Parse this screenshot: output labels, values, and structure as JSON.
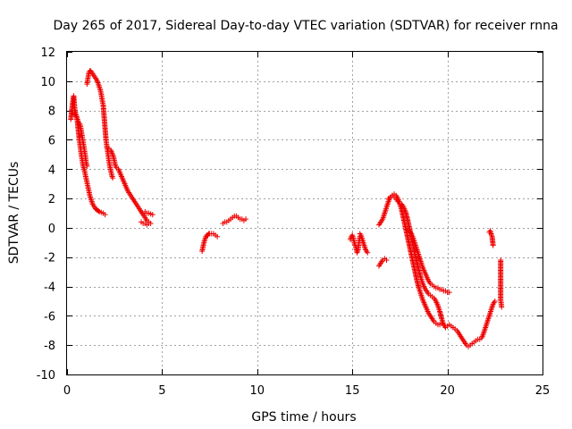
{
  "chart_data": {
    "type": "scatter",
    "title": "Day 265 of 2017, Sidereal Day-to-day VTEC variation (SDTVAR) for receiver rnna",
    "xlabel": "GPS time / hours",
    "ylabel": "SDTVAR / TECUs",
    "xlim": [
      0,
      25
    ],
    "ylim": [
      -10,
      12
    ],
    "xticks": [
      0,
      5,
      10,
      15,
      20,
      25
    ],
    "yticks": [
      -10,
      -8,
      -6,
      -4,
      -2,
      0,
      2,
      4,
      6,
      8,
      10,
      12
    ],
    "grid": true,
    "marker": "+",
    "colors": {
      "points": "#ee0000"
    },
    "segments": [
      {
        "name": "arc-1",
        "points": [
          [
            0.2,
            7.4
          ],
          [
            0.25,
            8.0
          ],
          [
            0.3,
            8.6
          ],
          [
            0.35,
            9.0
          ],
          [
            0.4,
            8.2
          ],
          [
            0.45,
            7.8
          ],
          [
            0.5,
            7.6
          ],
          [
            0.55,
            7.2
          ],
          [
            0.6,
            6.6
          ],
          [
            0.65,
            6.0
          ],
          [
            0.7,
            5.5
          ],
          [
            0.75,
            5.0
          ],
          [
            0.8,
            4.6
          ],
          [
            0.85,
            4.2
          ],
          [
            0.9,
            4.0
          ],
          [
            0.95,
            3.7
          ],
          [
            1.0,
            3.4
          ],
          [
            1.05,
            3.1
          ],
          [
            1.1,
            2.8
          ],
          [
            1.15,
            2.5
          ],
          [
            1.2,
            2.2
          ],
          [
            1.25,
            2.0
          ],
          [
            1.3,
            1.8
          ],
          [
            1.35,
            1.6
          ],
          [
            1.4,
            1.5
          ],
          [
            1.45,
            1.4
          ],
          [
            1.5,
            1.3
          ],
          [
            1.55,
            1.25
          ],
          [
            1.6,
            1.2
          ],
          [
            1.65,
            1.15
          ],
          [
            1.7,
            1.1
          ],
          [
            1.8,
            1.05
          ],
          [
            1.9,
            1.0
          ],
          [
            2.0,
            0.9
          ]
        ]
      },
      {
        "name": "arc-2",
        "points": [
          [
            0.3,
            7.8
          ],
          [
            0.4,
            7.8
          ],
          [
            0.5,
            7.6
          ],
          [
            0.6,
            7.2
          ],
          [
            0.7,
            7.0
          ],
          [
            0.75,
            6.6
          ],
          [
            0.8,
            6.2
          ],
          [
            0.85,
            5.8
          ],
          [
            0.9,
            5.4
          ],
          [
            0.95,
            5.0
          ],
          [
            1.0,
            4.5
          ],
          [
            1.05,
            4.2
          ]
        ]
      },
      {
        "name": "arc-3",
        "points": [
          [
            1.05,
            9.8
          ],
          [
            1.1,
            10.2
          ],
          [
            1.15,
            10.6
          ],
          [
            1.2,
            10.7
          ],
          [
            1.25,
            10.7
          ],
          [
            1.3,
            10.6
          ],
          [
            1.35,
            10.5
          ],
          [
            1.4,
            10.4
          ],
          [
            1.45,
            10.3
          ],
          [
            1.5,
            10.2
          ],
          [
            1.55,
            10.1
          ],
          [
            1.6,
            10.0
          ],
          [
            1.65,
            9.8
          ],
          [
            1.7,
            9.6
          ],
          [
            1.75,
            9.4
          ],
          [
            1.8,
            9.1
          ],
          [
            1.85,
            8.7
          ],
          [
            1.9,
            8.4
          ],
          [
            1.95,
            7.6
          ],
          [
            2.0,
            6.8
          ],
          [
            2.05,
            6.0
          ],
          [
            2.1,
            5.5
          ],
          [
            2.15,
            5.1
          ],
          [
            2.2,
            4.6
          ],
          [
            2.25,
            4.2
          ],
          [
            2.3,
            3.9
          ],
          [
            2.35,
            3.6
          ],
          [
            2.4,
            3.4
          ]
        ]
      },
      {
        "name": "arc-4",
        "points": [
          [
            2.1,
            5.5
          ],
          [
            2.2,
            5.4
          ],
          [
            2.3,
            5.3
          ],
          [
            2.4,
            5.0
          ],
          [
            2.45,
            4.8
          ],
          [
            2.5,
            4.5
          ],
          [
            2.55,
            4.2
          ],
          [
            2.6,
            4.1
          ],
          [
            2.7,
            4.0
          ],
          [
            2.8,
            3.7
          ],
          [
            2.9,
            3.4
          ],
          [
            3.0,
            3.1
          ],
          [
            3.1,
            2.8
          ],
          [
            3.2,
            2.5
          ],
          [
            3.3,
            2.3
          ],
          [
            3.4,
            2.1
          ],
          [
            3.5,
            1.9
          ],
          [
            3.6,
            1.7
          ],
          [
            3.7,
            1.5
          ],
          [
            3.8,
            1.3
          ],
          [
            3.9,
            1.1
          ],
          [
            4.0,
            0.9
          ],
          [
            4.1,
            0.7
          ],
          [
            4.2,
            0.5
          ],
          [
            4.3,
            0.4
          ],
          [
            4.4,
            0.3
          ]
        ]
      },
      {
        "name": "arc-5",
        "points": [
          [
            3.9,
            0.4
          ],
          [
            4.0,
            0.3
          ],
          [
            4.1,
            0.3
          ],
          [
            4.2,
            0.2
          ],
          [
            4.3,
            0.3
          ]
        ]
      },
      {
        "name": "arc-6",
        "points": [
          [
            4.1,
            1.1
          ],
          [
            4.2,
            1.0
          ],
          [
            4.3,
            1.0
          ],
          [
            4.4,
            0.95
          ],
          [
            4.5,
            0.9
          ]
        ]
      },
      {
        "name": "arc-7",
        "points": [
          [
            7.1,
            -1.6
          ],
          [
            7.15,
            -1.3
          ],
          [
            7.2,
            -1.0
          ],
          [
            7.25,
            -0.8
          ],
          [
            7.3,
            -0.6
          ],
          [
            7.35,
            -0.5
          ],
          [
            7.4,
            -0.5
          ],
          [
            7.45,
            -0.4
          ],
          [
            7.5,
            -0.4
          ],
          [
            7.6,
            -0.4
          ],
          [
            7.7,
            -0.4
          ],
          [
            7.8,
            -0.5
          ],
          [
            7.9,
            -0.6
          ]
        ]
      },
      {
        "name": "arc-8",
        "points": [
          [
            8.2,
            0.3
          ],
          [
            8.3,
            0.4
          ],
          [
            8.4,
            0.4
          ],
          [
            8.5,
            0.5
          ],
          [
            8.6,
            0.6
          ],
          [
            8.7,
            0.7
          ],
          [
            8.8,
            0.8
          ],
          [
            8.9,
            0.8
          ],
          [
            9.0,
            0.7
          ],
          [
            9.1,
            0.6
          ],
          [
            9.2,
            0.6
          ],
          [
            9.3,
            0.5
          ],
          [
            9.4,
            0.6
          ]
        ]
      },
      {
        "name": "arc-9",
        "points": [
          [
            14.9,
            -0.8
          ],
          [
            14.95,
            -0.6
          ],
          [
            15.0,
            -0.5
          ],
          [
            15.05,
            -0.7
          ],
          [
            15.1,
            -1.0
          ],
          [
            15.15,
            -1.2
          ],
          [
            15.2,
            -1.4
          ],
          [
            15.25,
            -1.7
          ],
          [
            15.3,
            -1.5
          ],
          [
            15.35,
            -1.0
          ],
          [
            15.4,
            -0.6
          ]
        ]
      },
      {
        "name": "arc-10",
        "points": [
          [
            15.4,
            -0.4
          ],
          [
            15.45,
            -0.5
          ],
          [
            15.5,
            -0.7
          ],
          [
            15.55,
            -0.9
          ],
          [
            15.6,
            -1.1
          ],
          [
            15.65,
            -1.3
          ],
          [
            15.7,
            -1.5
          ],
          [
            15.75,
            -1.6
          ],
          [
            15.8,
            -1.7
          ]
        ]
      },
      {
        "name": "arc-11",
        "points": [
          [
            16.4,
            -2.6
          ],
          [
            16.5,
            -2.4
          ],
          [
            16.6,
            -2.2
          ],
          [
            16.7,
            -2.1
          ],
          [
            16.8,
            -2.2
          ]
        ]
      },
      {
        "name": "arc-12",
        "points": [
          [
            16.4,
            0.2
          ],
          [
            16.5,
            0.4
          ],
          [
            16.6,
            0.6
          ],
          [
            16.7,
            1.0
          ],
          [
            16.8,
            1.4
          ],
          [
            16.9,
            1.8
          ],
          [
            17.0,
            2.1
          ],
          [
            17.1,
            2.2
          ],
          [
            17.2,
            2.3
          ],
          [
            17.3,
            2.2
          ],
          [
            17.4,
            2.0
          ],
          [
            17.5,
            1.6
          ],
          [
            17.6,
            1.2
          ],
          [
            17.7,
            0.6
          ],
          [
            17.8,
            0.0
          ],
          [
            17.9,
            -0.6
          ],
          [
            18.0,
            -1.2
          ],
          [
            18.1,
            -1.8
          ],
          [
            18.2,
            -2.4
          ],
          [
            18.3,
            -3.0
          ],
          [
            18.4,
            -3.6
          ],
          [
            18.5,
            -4.1
          ],
          [
            18.6,
            -4.5
          ],
          [
            18.7,
            -4.9
          ],
          [
            18.8,
            -5.2
          ],
          [
            18.9,
            -5.5
          ],
          [
            19.0,
            -5.8
          ],
          [
            19.1,
            -6.0
          ],
          [
            19.2,
            -6.2
          ],
          [
            19.3,
            -6.4
          ],
          [
            19.4,
            -6.5
          ],
          [
            19.5,
            -6.6
          ],
          [
            19.6,
            -6.6
          ],
          [
            19.7,
            -6.5
          ]
        ]
      },
      {
        "name": "arc-13",
        "points": [
          [
            16.9,
            2.0
          ],
          [
            17.0,
            2.1
          ],
          [
            17.1,
            2.2
          ],
          [
            17.2,
            2.1
          ],
          [
            17.3,
            2.0
          ],
          [
            17.4,
            1.8
          ],
          [
            17.5,
            1.7
          ],
          [
            17.6,
            1.6
          ],
          [
            17.7,
            1.4
          ],
          [
            17.8,
            1.1
          ],
          [
            17.9,
            0.6
          ],
          [
            18.0,
            0.0
          ],
          [
            18.1,
            -0.6
          ],
          [
            18.2,
            -1.2
          ],
          [
            18.3,
            -1.8
          ],
          [
            18.4,
            -2.4
          ],
          [
            18.5,
            -2.9
          ],
          [
            18.6,
            -3.4
          ],
          [
            18.7,
            -3.8
          ],
          [
            18.8,
            -4.1
          ],
          [
            18.9,
            -4.3
          ],
          [
            19.0,
            -4.5
          ],
          [
            19.1,
            -4.6
          ],
          [
            19.2,
            -4.7
          ],
          [
            19.3,
            -4.8
          ],
          [
            19.4,
            -5.0
          ],
          [
            19.5,
            -5.3
          ],
          [
            19.6,
            -5.7
          ],
          [
            19.7,
            -6.2
          ],
          [
            19.8,
            -6.6
          ],
          [
            19.9,
            -6.8
          ],
          [
            20.0,
            -6.7
          ],
          [
            20.1,
            -6.6
          ],
          [
            20.2,
            -6.7
          ],
          [
            20.3,
            -6.8
          ],
          [
            20.4,
            -6.9
          ],
          [
            20.5,
            -7.0
          ],
          [
            20.6,
            -7.2
          ],
          [
            20.7,
            -7.4
          ],
          [
            20.8,
            -7.6
          ],
          [
            20.9,
            -7.8
          ],
          [
            21.0,
            -8.0
          ],
          [
            21.1,
            -8.1
          ],
          [
            21.2,
            -8.0
          ],
          [
            21.3,
            -7.9
          ],
          [
            21.4,
            -7.8
          ],
          [
            21.5,
            -7.7
          ],
          [
            21.6,
            -7.6
          ],
          [
            21.7,
            -7.6
          ],
          [
            21.8,
            -7.5
          ],
          [
            21.9,
            -7.2
          ],
          [
            22.0,
            -6.8
          ],
          [
            22.1,
            -6.4
          ],
          [
            22.2,
            -6.0
          ],
          [
            22.3,
            -5.6
          ],
          [
            22.4,
            -5.2
          ],
          [
            22.5,
            -5.0
          ]
        ]
      },
      {
        "name": "arc-14",
        "points": [
          [
            17.9,
            -0.1
          ],
          [
            18.0,
            -0.2
          ],
          [
            18.1,
            -0.4
          ],
          [
            18.2,
            -0.7
          ],
          [
            18.3,
            -1.1
          ],
          [
            18.4,
            -1.5
          ],
          [
            18.5,
            -1.9
          ],
          [
            18.6,
            -2.3
          ],
          [
            18.7,
            -2.7
          ],
          [
            18.8,
            -3.0
          ],
          [
            18.9,
            -3.3
          ],
          [
            19.0,
            -3.6
          ],
          [
            19.1,
            -3.8
          ],
          [
            19.2,
            -3.9
          ],
          [
            19.3,
            -4.0
          ],
          [
            19.4,
            -4.1
          ],
          [
            19.5,
            -4.1
          ],
          [
            19.6,
            -4.2
          ],
          [
            19.7,
            -4.2
          ],
          [
            19.8,
            -4.3
          ],
          [
            19.9,
            -4.3
          ],
          [
            20.0,
            -4.4
          ],
          [
            20.1,
            -4.4
          ]
        ]
      },
      {
        "name": "arc-15",
        "points": [
          [
            22.2,
            -0.3
          ],
          [
            22.25,
            -0.2
          ],
          [
            22.3,
            -0.4
          ],
          [
            22.35,
            -0.6
          ],
          [
            22.4,
            -1.2
          ]
        ]
      },
      {
        "name": "arc-16",
        "points": [
          [
            22.8,
            -2.2
          ],
          [
            22.8,
            -4.9
          ],
          [
            22.85,
            -5.4
          ]
        ]
      }
    ]
  }
}
